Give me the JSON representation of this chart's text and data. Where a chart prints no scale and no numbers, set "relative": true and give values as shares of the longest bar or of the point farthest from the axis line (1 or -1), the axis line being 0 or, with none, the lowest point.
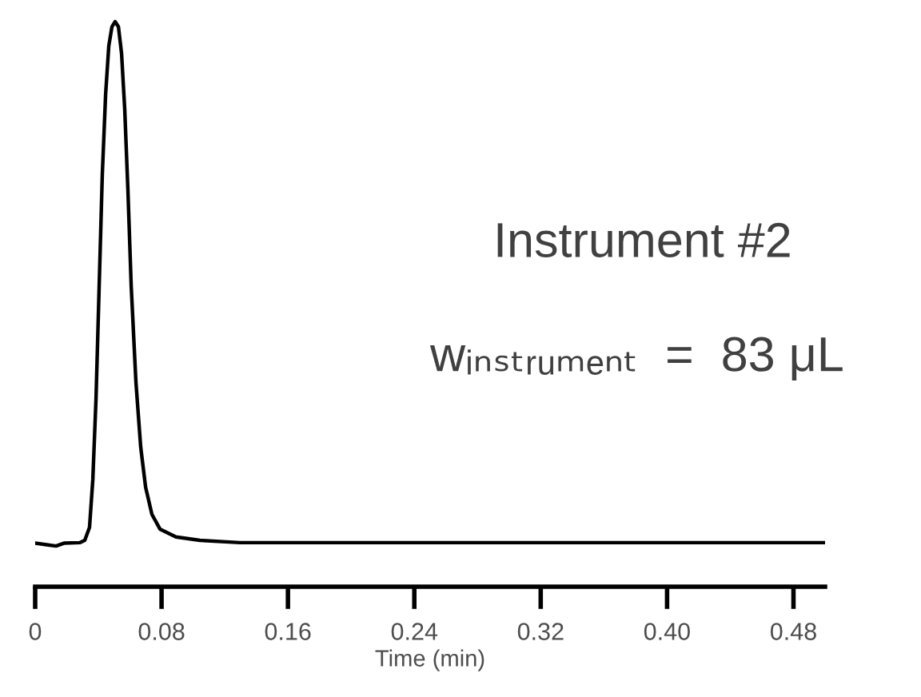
{
  "chart_data": {
    "type": "line",
    "relative": true,
    "xlabel": "Time (min)",
    "xlim": [
      0,
      0.5
    ],
    "xticks": [
      0,
      0.08,
      0.16,
      0.24,
      0.32,
      {
        "value": 0.4,
        "label": "0.40"
      },
      0.48
    ],
    "annotations": [
      "Instrument #2",
      "wᵢₙₛₜᵣᵤₘₑₙₜ  =  83 μL"
    ],
    "grid": false,
    "marker": "none",
    "line_style": "solid",
    "series": [
      {
        "color": "#000000",
        "x": [
          0,
          0.0081,
          0.0132,
          0.0182,
          0.0284,
          0.0314,
          0.0344,
          0.0365,
          0.0385,
          0.0405,
          0.0425,
          0.0446,
          0.0466,
          0.0486,
          0.0506,
          0.0527,
          0.0547,
          0.0567,
          0.0587,
          0.0608,
          0.0638,
          0.0668,
          0.0699,
          0.0739,
          0.079,
          0.0891,
          0.1043,
          0.1296,
          0.2,
          0.3,
          0.4,
          0.5
        ],
        "values": [
          0.077,
          0.074,
          0.072,
          0.077,
          0.078,
          0.082,
          0.105,
          0.19,
          0.332,
          0.531,
          0.73,
          0.872,
          0.957,
          0.991,
          1,
          0.991,
          0.943,
          0.844,
          0.702,
          0.531,
          0.361,
          0.247,
          0.176,
          0.128,
          0.102,
          0.088,
          0.082,
          0.078,
          0.078,
          0.078,
          0.078,
          0.078
        ]
      }
    ]
  }
}
